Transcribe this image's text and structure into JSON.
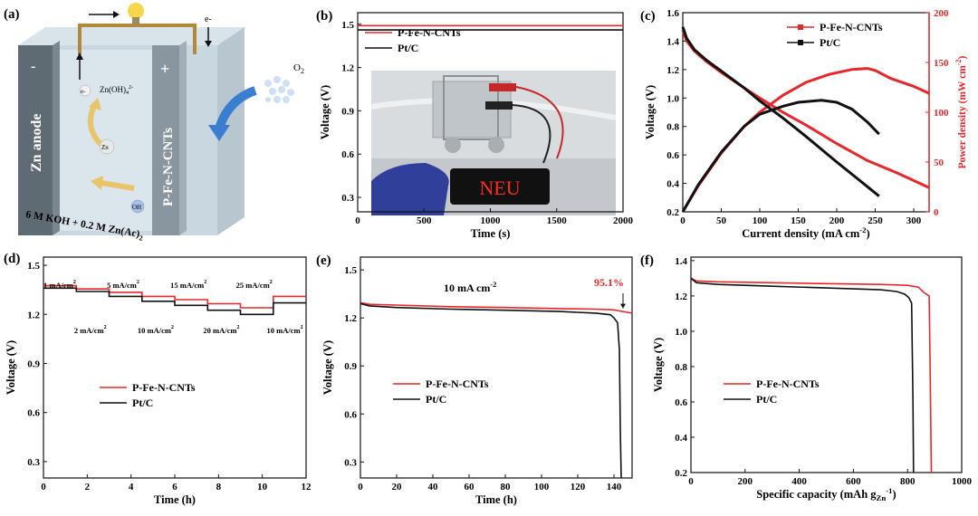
{
  "panel_labels": [
    "(a)",
    "(b)",
    "(c)",
    "(d)",
    "(e)",
    "(f)"
  ],
  "colors": {
    "red": "#e8272a",
    "black": "#111111",
    "anode": "#5f6b73",
    "cathode": "#8a969f",
    "electrolyte": "#c9d7e0",
    "arrow": "#3a7ed1",
    "wire": "#b08a3a"
  },
  "schematic": {
    "anode_label": "Zn anode",
    "cathode_label": "P-Fe-N-CNTs",
    "minus": "-",
    "plus": "+",
    "electron_top": "e-",
    "electron_left": "e-",
    "zincate": "Zn(OH)",
    "zincate_sub": "4",
    "zincate_sup": "2-",
    "zn_ion": "Zn",
    "oh_ion": "OH",
    "o2_label": "O",
    "o2_sub": "2",
    "electrolyte_text": "6 M KOH + 0.2 M Zn(Ac)",
    "electrolyte_sub": "2",
    "photo_sign": "NEU"
  },
  "chart_data": [
    {
      "panel": "(b)",
      "type": "line",
      "xlabel": "Time (s)",
      "ylabel": "Voltage (V)",
      "xlim": [
        0,
        2000
      ],
      "ylim": [
        0.2,
        1.58
      ],
      "xticks": [
        0,
        500,
        1000,
        1500,
        2000
      ],
      "yticks": [
        0.3,
        0.6,
        0.9,
        1.2,
        1.5
      ],
      "legend": "top-left",
      "series": [
        {
          "name": "P-Fe-N-CNTs",
          "color": "red",
          "x": [
            0,
            2000
          ],
          "y": [
            1.49,
            1.49
          ]
        },
        {
          "name": "Pt/C",
          "color": "black",
          "x": [
            0,
            2000
          ],
          "y": [
            1.46,
            1.46
          ]
        }
      ]
    },
    {
      "panel": "(c)",
      "type": "line",
      "xlabel": "Current density (mA cm",
      "xlabel_sup": "-2",
      "xlabel_end": ")",
      "ylabel": "Voltage (V)",
      "y2label": "Power density (mW cm",
      "y2label_sup": "-2",
      "y2label_end": ")",
      "xlim": [
        0,
        320
      ],
      "ylim": [
        0.2,
        1.6
      ],
      "y2lim": [
        0,
        200
      ],
      "xticks": [
        0,
        50,
        100,
        150,
        200,
        250,
        300
      ],
      "yticks": [
        0.2,
        0.4,
        0.6,
        0.8,
        1.0,
        1.2,
        1.4,
        1.6
      ],
      "y2ticks": [
        0,
        50,
        100,
        150,
        200
      ],
      "legend": "top-right",
      "series": [
        {
          "name": "P-Fe-N-CNTs",
          "color": "red",
          "axis": "left",
          "x": [
            0,
            5,
            15,
            30,
            50,
            80,
            100,
            130,
            160,
            200,
            240,
            280,
            320
          ],
          "y": [
            1.48,
            1.4,
            1.33,
            1.26,
            1.18,
            1.07,
            1.0,
            0.9,
            0.81,
            0.68,
            0.56,
            0.47,
            0.37
          ]
        },
        {
          "name": "P-Fe-N-CNTs",
          "color": "red",
          "axis": "right",
          "x": [
            0,
            20,
            50,
            80,
            100,
            130,
            160,
            190,
            220,
            240,
            250,
            270,
            300,
            320
          ],
          "y": [
            0,
            26,
            59,
            86,
            100,
            117,
            130,
            138,
            143,
            144,
            142,
            134,
            126,
            119
          ]
        },
        {
          "name": "Pt/C",
          "color": "black",
          "axis": "left",
          "x": [
            0,
            5,
            15,
            30,
            50,
            80,
            100,
            130,
            160,
            200,
            230,
            255
          ],
          "y": [
            1.5,
            1.42,
            1.34,
            1.27,
            1.19,
            1.07,
            0.98,
            0.86,
            0.73,
            0.55,
            0.42,
            0.31
          ]
        },
        {
          "name": "Pt/C",
          "color": "black",
          "axis": "right",
          "x": [
            0,
            20,
            50,
            80,
            100,
            130,
            150,
            180,
            200,
            220,
            240,
            255
          ],
          "y": [
            0,
            27,
            60,
            86,
            98,
            106,
            110,
            112,
            110,
            103,
            90,
            78
          ]
        }
      ]
    },
    {
      "panel": "(d)",
      "type": "line",
      "xlabel": "Time (h)",
      "ylabel": "Voltage (V)",
      "xlim": [
        0,
        12
      ],
      "ylim": [
        0.2,
        1.55
      ],
      "xticks": [
        0,
        2,
        4,
        6,
        8,
        10,
        12
      ],
      "yticks": [
        0.3,
        0.6,
        0.9,
        1.2,
        1.5
      ],
      "legend": "center",
      "step_labels_top": [
        {
          "x": 0,
          "text": "1 mA/cm",
          "sup": "2"
        },
        {
          "x": 2.9,
          "text": "5 mA/cm",
          "sup": "2"
        },
        {
          "x": 5.8,
          "text": "15 mA/cm",
          "sup": "2"
        },
        {
          "x": 8.8,
          "text": "25 mA/cm",
          "sup": "2"
        }
      ],
      "step_labels_bottom": [
        {
          "x": 1.4,
          "text": "2 mA/cm",
          "sup": "2"
        },
        {
          "x": 4.3,
          "text": "10 mA/cm",
          "sup": "2"
        },
        {
          "x": 7.3,
          "text": "20 mA/cm",
          "sup": "2"
        },
        {
          "x": 10.2,
          "text": "10 mA/cm",
          "sup": "2"
        }
      ],
      "series": [
        {
          "name": "P-Fe-N-CNTs",
          "color": "red",
          "x": [
            0,
            1.5,
            1.5,
            3,
            3,
            4.5,
            4.5,
            6,
            6,
            7.5,
            7.5,
            9,
            9,
            10.5,
            10.5,
            12
          ],
          "y": [
            1.375,
            1.375,
            1.355,
            1.355,
            1.335,
            1.335,
            1.31,
            1.31,
            1.29,
            1.29,
            1.265,
            1.265,
            1.24,
            1.24,
            1.31,
            1.31
          ]
        },
        {
          "name": "Pt/C",
          "color": "black",
          "x": [
            0,
            1.5,
            1.5,
            3,
            3,
            4.5,
            4.5,
            6,
            6,
            7.5,
            7.5,
            9,
            9,
            10.5,
            10.5,
            12
          ],
          "y": [
            1.36,
            1.36,
            1.34,
            1.34,
            1.31,
            1.31,
            1.28,
            1.28,
            1.255,
            1.255,
            1.225,
            1.225,
            1.2,
            1.2,
            1.27,
            1.27
          ]
        }
      ]
    },
    {
      "panel": "(e)",
      "type": "line",
      "xlabel": "Time (h)",
      "ylabel": "Voltage (V)",
      "xlim": [
        0,
        150
      ],
      "ylim": [
        0.2,
        1.58
      ],
      "xticks": [
        0,
        20,
        40,
        60,
        80,
        100,
        120,
        140
      ],
      "yticks": [
        0.3,
        0.6,
        0.9,
        1.2,
        1.5
      ],
      "legend": "center-left",
      "annotation_current": "10 mA cm",
      "annotation_current_sup": "-2",
      "annotation_retention": "95.1%",
      "series": [
        {
          "name": "P-Fe-N-CNTs",
          "color": "red",
          "x": [
            0,
            5,
            20,
            50,
            80,
            110,
            130,
            140,
            145,
            150
          ],
          "y": [
            1.295,
            1.285,
            1.28,
            1.27,
            1.265,
            1.258,
            1.255,
            1.25,
            1.24,
            1.23
          ]
        },
        {
          "name": "Pt/C",
          "color": "black",
          "x": [
            0,
            5,
            20,
            50,
            80,
            110,
            130,
            138,
            140,
            142,
            143,
            143.5,
            144
          ],
          "y": [
            1.29,
            1.275,
            1.265,
            1.255,
            1.248,
            1.24,
            1.23,
            1.22,
            1.2,
            1.17,
            1.0,
            0.5,
            0.2
          ]
        }
      ]
    },
    {
      "panel": "(f)",
      "type": "line",
      "xlabel": "Specific capacity (mAh g",
      "xlabel_sub": "Zn",
      "xlabel_sup": "-1",
      "xlabel_end": ")",
      "ylabel": "Voltage (V)",
      "xlim": [
        0,
        1000
      ],
      "ylim": [
        0.2,
        1.42
      ],
      "xticks": [
        0,
        200,
        400,
        600,
        800,
        1000
      ],
      "yticks": [
        0.2,
        0.4,
        0.6,
        0.8,
        1.0,
        1.2,
        1.4
      ],
      "legend": "center-left",
      "series": [
        {
          "name": "P-Fe-N-CNTs",
          "color": "red",
          "x": [
            0,
            20,
            100,
            300,
            500,
            700,
            800,
            840,
            860,
            880,
            885,
            888
          ],
          "y": [
            1.3,
            1.285,
            1.28,
            1.275,
            1.27,
            1.265,
            1.26,
            1.25,
            1.22,
            1.2,
            0.6,
            0.2
          ]
        },
        {
          "name": "Pt/C",
          "color": "black",
          "x": [
            0,
            20,
            100,
            300,
            500,
            700,
            760,
            790,
            805,
            815,
            820,
            822
          ],
          "y": [
            1.3,
            1.275,
            1.265,
            1.255,
            1.245,
            1.235,
            1.225,
            1.21,
            1.19,
            1.16,
            0.6,
            0.2
          ]
        }
      ]
    }
  ]
}
